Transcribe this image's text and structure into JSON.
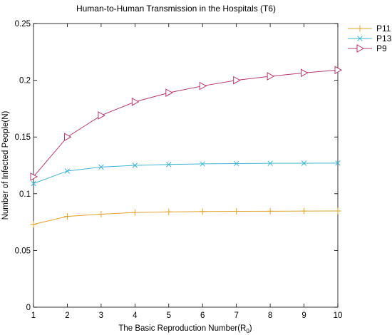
{
  "chart_data": {
    "type": "line",
    "title": "Human-to-Human Transmission in the Hospitals (T6)",
    "xlabel": "The Basic Reproduction Number(R",
    "xlabel_subscript": "0",
    "xlabel_suffix": ")",
    "ylabel": "Number of Infected People(N)",
    "x": [
      1,
      2,
      3,
      4,
      5,
      6,
      7,
      8,
      9,
      10
    ],
    "xlim": [
      1,
      10
    ],
    "ylim": [
      0,
      0.25
    ],
    "x_ticks": [
      "1",
      "2",
      "3",
      "4",
      "5",
      "6",
      "7",
      "8",
      "9",
      "10"
    ],
    "y_ticks": [
      {
        "value": 0,
        "label": "0"
      },
      {
        "value": 0.05,
        "label": "0.05"
      },
      {
        "value": 0.1,
        "label": "0.1"
      },
      {
        "value": 0.15,
        "label": "0.15"
      },
      {
        "value": 0.2,
        "label": "0.2"
      },
      {
        "value": 0.25,
        "label": "0.25"
      }
    ],
    "grid": false,
    "legend_position": "top-right-outside",
    "series": [
      {
        "name": "P11",
        "color": "#E1A32A",
        "marker": "plus",
        "values": [
          0.073,
          0.08,
          0.082,
          0.0835,
          0.084,
          0.0843,
          0.0845,
          0.0846,
          0.0847,
          0.0848
        ]
      },
      {
        "name": "P13",
        "color": "#3FB6CF",
        "marker": "x",
        "values": [
          0.109,
          0.12,
          0.1235,
          0.125,
          0.1258,
          0.1263,
          0.1266,
          0.1268,
          0.1269,
          0.127
        ]
      },
      {
        "name": "P9",
        "color": "#B23A6E",
        "marker": "triangle-right",
        "values": [
          0.115,
          0.15,
          0.169,
          0.181,
          0.189,
          0.195,
          0.2,
          0.2035,
          0.2065,
          0.209
        ]
      }
    ]
  }
}
